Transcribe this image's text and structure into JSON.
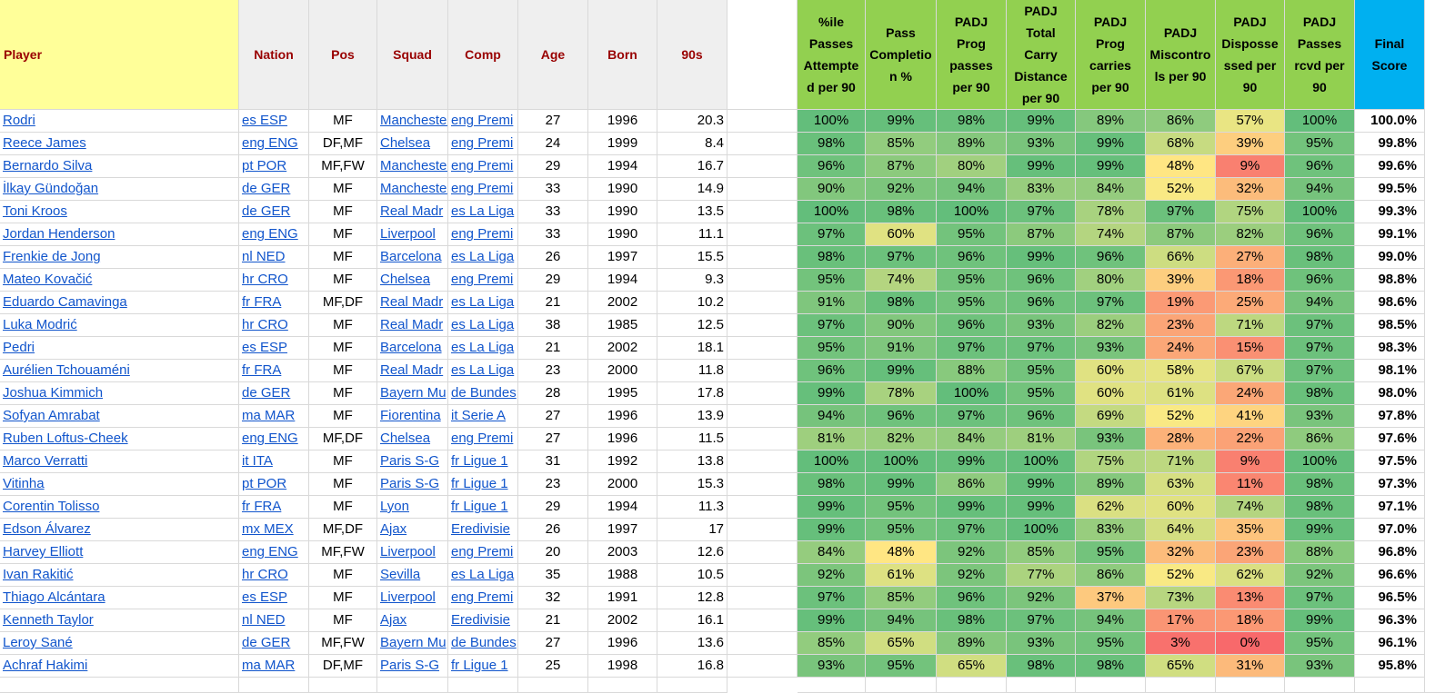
{
  "table": {
    "header": [
      "Player",
      "Nation",
      "Pos",
      "Squad",
      "Comp",
      "Age",
      "Born",
      "90s",
      "%ile Passes Attempted per 90",
      "Pass Completion %",
      "PADJ Prog passes per 90",
      "PADJ Total Carry Distance per 90",
      "PADJ Prog carries per 90",
      "PADJ Miscontrols per 90",
      "PADJ Dispossessed per 90",
      "PADJ Passes rcvd per 90",
      "Final Score"
    ],
    "rows": [
      [
        "Rodri",
        "es ESP",
        "MF",
        "Manchester",
        "eng Premi",
        27,
        1996,
        20.3,
        "100%",
        "99%",
        "98%",
        "99%",
        "89%",
        "86%",
        "57%",
        "100%",
        "100.0%"
      ],
      [
        "Reece James",
        "eng ENG",
        "DF,MF",
        "Chelsea",
        "eng Premi",
        24,
        1999,
        8.4,
        "98%",
        "85%",
        "89%",
        "93%",
        "99%",
        "68%",
        "39%",
        "95%",
        "99.8%"
      ],
      [
        "Bernardo Silva",
        "pt POR",
        "MF,FW",
        "Manchester",
        "eng Premi",
        29,
        1994,
        16.7,
        "96%",
        "87%",
        "80%",
        "99%",
        "99%",
        "48%",
        "9%",
        "96%",
        "99.6%"
      ],
      [
        "İlkay Gündoğan",
        "de GER",
        "MF",
        "Manchester",
        "eng Premi",
        33,
        1990,
        14.9,
        "90%",
        "92%",
        "94%",
        "83%",
        "84%",
        "52%",
        "32%",
        "94%",
        "99.5%"
      ],
      [
        "Toni Kroos",
        "de GER",
        "MF",
        "Real Madr",
        "es La Liga",
        33,
        1990,
        13.5,
        "100%",
        "98%",
        "100%",
        "97%",
        "78%",
        "97%",
        "75%",
        "100%",
        "99.3%"
      ],
      [
        "Jordan Henderson",
        "eng ENG",
        "MF",
        "Liverpool",
        "eng Premi",
        33,
        1990,
        11.1,
        "97%",
        "60%",
        "95%",
        "87%",
        "74%",
        "87%",
        "82%",
        "96%",
        "99.1%"
      ],
      [
        "Frenkie de Jong",
        "nl NED",
        "MF",
        "Barcelona",
        "es La Liga",
        26,
        1997,
        15.5,
        "98%",
        "97%",
        "96%",
        "99%",
        "96%",
        "66%",
        "27%",
        "98%",
        "99.0%"
      ],
      [
        "Mateo Kovačić",
        "hr CRO",
        "MF",
        "Chelsea",
        "eng Premi",
        29,
        1994,
        9.3,
        "95%",
        "74%",
        "95%",
        "96%",
        "80%",
        "39%",
        "18%",
        "96%",
        "98.8%"
      ],
      [
        "Eduardo Camavinga",
        "fr FRA",
        "MF,DF",
        "Real Madr",
        "es La Liga",
        21,
        2002,
        10.2,
        "91%",
        "98%",
        "95%",
        "96%",
        "97%",
        "19%",
        "25%",
        "94%",
        "98.6%"
      ],
      [
        "Luka Modrić",
        "hr CRO",
        "MF",
        "Real Madr",
        "es La Liga",
        38,
        1985,
        12.5,
        "97%",
        "90%",
        "96%",
        "93%",
        "82%",
        "23%",
        "71%",
        "97%",
        "98.5%"
      ],
      [
        "Pedri",
        "es ESP",
        "MF",
        "Barcelona",
        "es La Liga",
        21,
        2002,
        18.1,
        "95%",
        "91%",
        "97%",
        "97%",
        "93%",
        "24%",
        "15%",
        "97%",
        "98.3%"
      ],
      [
        "Aurélien Tchouaméni",
        "fr FRA",
        "MF",
        "Real Madr",
        "es La Liga",
        23,
        2000,
        11.8,
        "96%",
        "99%",
        "88%",
        "95%",
        "60%",
        "58%",
        "67%",
        "97%",
        "98.1%"
      ],
      [
        "Joshua Kimmich",
        "de GER",
        "MF",
        "Bayern Mu",
        "de Bundes",
        28,
        1995,
        17.8,
        "99%",
        "78%",
        "100%",
        "95%",
        "60%",
        "61%",
        "24%",
        "98%",
        "98.0%"
      ],
      [
        "Sofyan Amrabat",
        "ma MAR",
        "MF",
        "Fiorentina",
        "it Serie A",
        27,
        1996,
        13.9,
        "94%",
        "96%",
        "97%",
        "96%",
        "69%",
        "52%",
        "41%",
        "93%",
        "97.8%"
      ],
      [
        "Ruben Loftus-Cheek",
        "eng ENG",
        "MF,DF",
        "Chelsea",
        "eng Premi",
        27,
        1996,
        11.5,
        "81%",
        "82%",
        "84%",
        "81%",
        "93%",
        "28%",
        "22%",
        "86%",
        "97.6%"
      ],
      [
        "Marco Verratti",
        "it ITA",
        "MF",
        "Paris S-G",
        "fr Ligue 1",
        31,
        1992,
        13.8,
        "100%",
        "100%",
        "99%",
        "100%",
        "75%",
        "71%",
        "9%",
        "100%",
        "97.5%"
      ],
      [
        "Vitinha",
        "pt POR",
        "MF",
        "Paris S-G",
        "fr Ligue 1",
        23,
        2000,
        15.3,
        "98%",
        "99%",
        "86%",
        "99%",
        "89%",
        "63%",
        "11%",
        "98%",
        "97.3%"
      ],
      [
        "Corentin Tolisso",
        "fr FRA",
        "MF",
        "Lyon",
        "fr Ligue 1",
        29,
        1994,
        11.3,
        "99%",
        "95%",
        "99%",
        "99%",
        "62%",
        "60%",
        "74%",
        "98%",
        "97.1%"
      ],
      [
        "Edson Álvarez",
        "mx MEX",
        "MF,DF",
        "Ajax",
        "Eredivisie",
        26,
        1997,
        17,
        "99%",
        "95%",
        "97%",
        "100%",
        "83%",
        "64%",
        "35%",
        "99%",
        "97.0%"
      ],
      [
        "Harvey Elliott",
        "eng ENG",
        "MF,FW",
        "Liverpool",
        "eng Premi",
        20,
        2003,
        12.6,
        "84%",
        "48%",
        "92%",
        "85%",
        "95%",
        "32%",
        "23%",
        "88%",
        "96.8%"
      ],
      [
        "Ivan Rakitić",
        "hr CRO",
        "MF",
        "Sevilla",
        "es La Liga",
        35,
        1988,
        10.5,
        "92%",
        "61%",
        "92%",
        "77%",
        "86%",
        "52%",
        "62%",
        "92%",
        "96.6%"
      ],
      [
        "Thiago Alcántara",
        "es ESP",
        "MF",
        "Liverpool",
        "eng Premi",
        32,
        1991,
        12.8,
        "97%",
        "85%",
        "96%",
        "92%",
        "37%",
        "73%",
        "13%",
        "97%",
        "96.5%"
      ],
      [
        "Kenneth Taylor",
        "nl NED",
        "MF",
        "Ajax",
        "Eredivisie",
        21,
        2002,
        16.1,
        "99%",
        "94%",
        "98%",
        "97%",
        "94%",
        "17%",
        "18%",
        "99%",
        "96.3%"
      ],
      [
        "Leroy Sané",
        "de GER",
        "MF,FW",
        "Bayern Mu",
        "de Bundes",
        27,
        1996,
        13.6,
        "85%",
        "65%",
        "89%",
        "93%",
        "95%",
        "3%",
        "0%",
        "95%",
        "96.1%"
      ],
      [
        "Achraf Hakimi",
        "ma MAR",
        "DF,MF",
        "Paris S-G",
        "fr Ligue 1",
        25,
        1998,
        16.8,
        "93%",
        "95%",
        "65%",
        "98%",
        "98%",
        "65%",
        "31%",
        "93%",
        "95.8%"
      ]
    ]
  }
}
